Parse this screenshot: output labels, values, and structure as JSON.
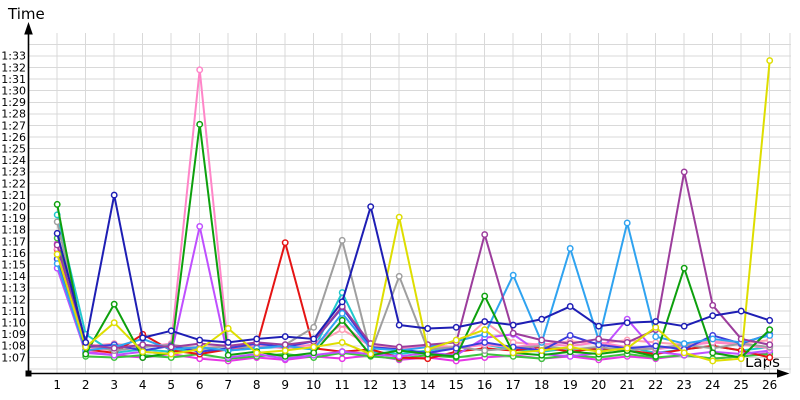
{
  "chart_data": {
    "type": "line",
    "title": "",
    "xlabel": "Laps",
    "ylabel": "Time",
    "x": [
      1,
      2,
      3,
      4,
      5,
      6,
      7,
      8,
      9,
      10,
      11,
      12,
      13,
      14,
      15,
      16,
      17,
      18,
      19,
      20,
      21,
      22,
      23,
      24,
      25,
      26
    ],
    "y_ticks": [
      "1:07",
      "1:08",
      "1:09",
      "1:10",
      "1:11",
      "1:12",
      "1:13",
      "1:14",
      "1:15",
      "1:16",
      "1:17",
      "1:18",
      "1:19",
      "1:20",
      "1:21",
      "1:22",
      "1:23",
      "1:24",
      "1:25",
      "1:26",
      "1:27",
      "1:28",
      "1:29",
      "1:30",
      "1:31",
      "1:32",
      "1:33"
    ],
    "y_tick_start_seconds": 67,
    "ylim_seconds": [
      66,
      94
    ],
    "grid": true,
    "legend": "none",
    "marker": "open-circle",
    "series": [
      {
        "name": "salmon",
        "color": "#ff9fb4",
        "values": [
          75.9,
          68.0,
          68.2,
          67.9,
          68.1,
          67.8,
          68.0,
          68.2,
          67.9,
          68.1,
          69.4,
          68.0,
          67.8,
          68.1,
          67.9,
          70.1,
          68.3,
          68.1,
          68.4,
          68.2,
          68.5,
          68.3,
          68.1,
          68.4,
          68.2,
          68.5
        ]
      },
      {
        "name": "magenta",
        "color": "#e636e6",
        "values": [
          76.8,
          67.5,
          67.2,
          67.0,
          67.3,
          66.9,
          66.7,
          67.0,
          66.8,
          67.1,
          66.9,
          67.2,
          66.8,
          67.0,
          66.7,
          67.0,
          67.2,
          66.9,
          67.1,
          66.8,
          67.1,
          66.9,
          67.2,
          66.9,
          67.1,
          67.4
        ]
      },
      {
        "name": "lime",
        "color": "#3ec43e",
        "values": [
          77.3,
          67.1,
          67.0,
          67.2,
          67.0,
          67.3,
          66.9,
          67.1,
          67.3,
          67.0,
          67.4,
          67.1,
          66.9,
          67.2,
          67.0,
          67.3,
          67.1,
          66.9,
          67.2,
          67.0,
          67.3,
          67.0,
          67.2,
          66.9,
          67.1,
          67.3
        ]
      },
      {
        "name": "cyan",
        "color": "#1fc8cd",
        "values": [
          79.3,
          69.0,
          67.4,
          67.7,
          67.5,
          67.8,
          67.6,
          67.8,
          67.9,
          67.7,
          72.6,
          67.5,
          67.3,
          67.6,
          67.9,
          68.1,
          67.7,
          67.5,
          67.8,
          67.6,
          67.9,
          67.4,
          67.7,
          68.0,
          67.6,
          67.9
        ]
      },
      {
        "name": "red",
        "color": "#e51414",
        "values": [
          76.3,
          67.7,
          67.4,
          69.0,
          67.6,
          67.3,
          67.7,
          68.0,
          76.9,
          67.8,
          67.5,
          67.7,
          67.0,
          66.9,
          67.5,
          67.8,
          67.6,
          67.9,
          67.5,
          67.8,
          67.6,
          67.3,
          67.7,
          68.0,
          67.6,
          67.0
        ]
      },
      {
        "name": "violet",
        "color": "#bf4fff",
        "values": [
          74.7,
          67.4,
          67.2,
          67.5,
          67.3,
          78.3,
          67.0,
          67.3,
          66.9,
          67.2,
          67.5,
          67.3,
          67.1,
          67.4,
          67.2,
          68.7,
          69.0,
          67.3,
          67.1,
          67.4,
          70.3,
          67.5,
          67.2,
          67.5,
          67.3,
          67.6
        ]
      },
      {
        "name": "pink",
        "color": "#ff85c8",
        "values": [
          76.4,
          67.9,
          67.6,
          67.9,
          68.2,
          91.8,
          67.8,
          68.0,
          67.8,
          68.1,
          69.9,
          67.9,
          67.7,
          68.0,
          67.8,
          68.1,
          67.9,
          68.2,
          68.0,
          68.3,
          67.9,
          67.7,
          68.0,
          68.3,
          68.1,
          67.8
        ]
      },
      {
        "name": "gray",
        "color": "#9f9f9f",
        "values": [
          78.7,
          68.1,
          67.6,
          67.9,
          68.1,
          67.7,
          68.0,
          67.8,
          68.1,
          69.6,
          77.1,
          67.4,
          74.0,
          67.7,
          67.9,
          67.6,
          67.8,
          68.0,
          67.7,
          67.9,
          67.6,
          67.8,
          68.1,
          67.8,
          68.2,
          67.9
        ]
      },
      {
        "name": "blue",
        "color": "#3c3cdc",
        "values": [
          75.5,
          67.9,
          68.1,
          67.6,
          68.0,
          67.5,
          67.8,
          68.2,
          67.9,
          68.4,
          71.3,
          67.9,
          67.7,
          67.4,
          67.8,
          68.3,
          67.9,
          67.6,
          68.9,
          68.1,
          67.8,
          68.0,
          67.7,
          68.9,
          68.2,
          69.0
        ]
      },
      {
        "name": "sky",
        "color": "#2fa3f0",
        "values": [
          75.1,
          67.6,
          67.9,
          68.6,
          67.7,
          67.9,
          67.6,
          67.8,
          68.0,
          67.7,
          70.8,
          67.8,
          67.6,
          67.9,
          68.4,
          69.0,
          74.1,
          68.3,
          76.4,
          68.5,
          78.6,
          68.8,
          68.2,
          68.6,
          68.3,
          68.9
        ]
      },
      {
        "name": "green",
        "color": "#0da00d",
        "values": [
          80.2,
          67.3,
          71.6,
          67.0,
          67.4,
          87.1,
          67.2,
          67.5,
          67.1,
          67.4,
          70.2,
          67.2,
          67.6,
          67.3,
          67.1,
          72.3,
          67.4,
          67.2,
          67.5,
          67.3,
          67.6,
          67.1,
          74.7,
          67.4,
          67.0,
          69.4
        ]
      },
      {
        "name": "purple",
        "color": "#9c3d9c",
        "values": [
          76.7,
          68.1,
          67.8,
          68.1,
          67.9,
          68.2,
          68.0,
          68.3,
          68.1,
          68.4,
          71.4,
          68.2,
          67.9,
          68.1,
          68.3,
          77.6,
          69.1,
          68.5,
          68.2,
          68.6,
          68.3,
          69.4,
          83.0,
          71.5,
          68.6,
          68.1
        ]
      },
      {
        "name": "yellow",
        "color": "#dede00",
        "values": [
          75.9,
          67.9,
          70.0,
          67.5,
          67.3,
          67.7,
          69.5,
          67.4,
          67.6,
          67.9,
          68.3,
          67.3,
          79.1,
          67.7,
          68.5,
          69.4,
          67.4,
          67.6,
          67.9,
          67.5,
          67.8,
          69.6,
          67.4,
          66.7,
          66.9,
          92.6
        ]
      },
      {
        "name": "navy",
        "color": "#1e1eb4",
        "values": [
          77.7,
          68.3,
          81.0,
          68.7,
          69.3,
          68.5,
          68.3,
          68.6,
          68.8,
          68.6,
          71.8,
          80.0,
          69.8,
          69.5,
          69.6,
          70.1,
          69.8,
          70.3,
          71.4,
          69.7,
          70.0,
          70.1,
          69.7,
          70.6,
          71.0,
          70.2
        ]
      }
    ]
  },
  "axis_titles": {
    "y": "Time",
    "x": "Laps"
  },
  "colors": {
    "background": "#ffffff",
    "grid": "#d9d9d9",
    "axis": "#000000",
    "tick_text": "#000000",
    "marker_fill": "#ffffff"
  }
}
